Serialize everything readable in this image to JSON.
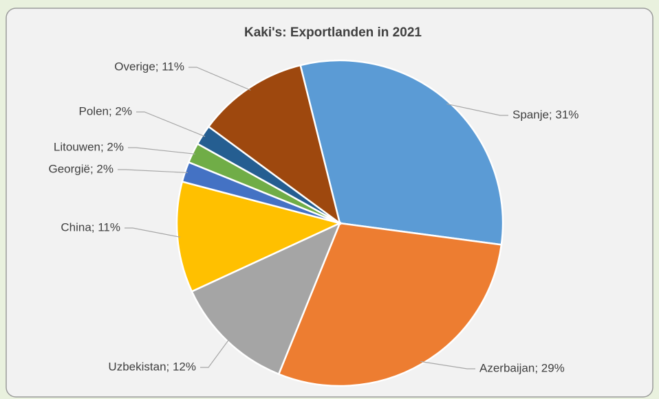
{
  "chart_data": {
    "type": "pie",
    "title": "Kaki's: Exportlanden in 2021",
    "categories": [
      "Spanje",
      "Azerbaijan",
      "Uzbekistan",
      "China",
      "Georgië",
      "Litouwen",
      "Polen",
      "Overige"
    ],
    "values": [
      31,
      29,
      12,
      11,
      2,
      2,
      2,
      11
    ],
    "value_labels": [
      "Spanje; 31%",
      "Azerbaijan; 29%",
      "Uzbekistan; 12%",
      "China; 11%",
      "Georgië; 2%",
      "Litouwen; 2%",
      "Polen; 2%",
      "Overige; 11%"
    ],
    "colors": [
      "#5b9bd5",
      "#ed7d31",
      "#a5a5a5",
      "#ffc000",
      "#4472c4",
      "#70ad47",
      "#255e91",
      "#9e480e"
    ]
  }
}
